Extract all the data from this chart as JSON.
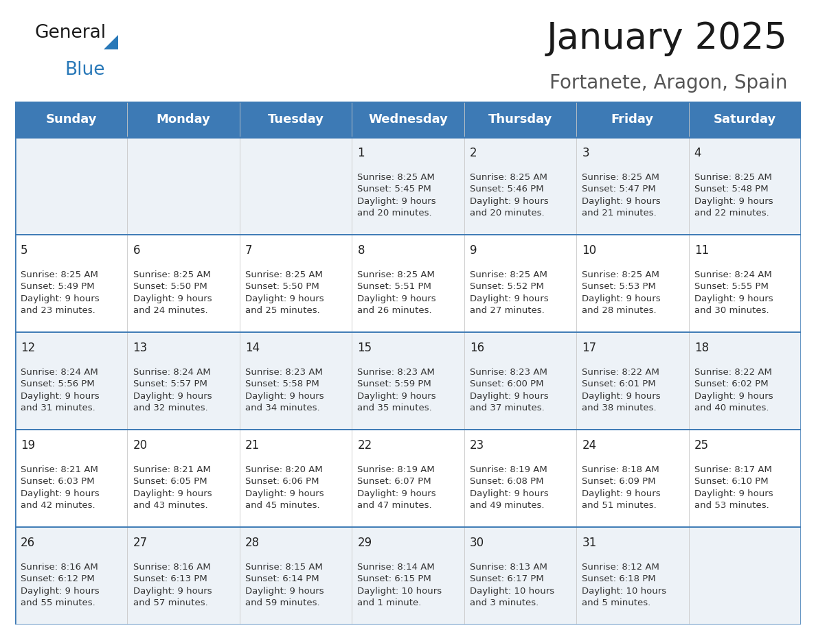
{
  "title": "January 2025",
  "subtitle": "Fortanete, Aragon, Spain",
  "header_color": "#3d7ab5",
  "header_text_color": "#ffffff",
  "cell_bg_row0": "#edf2f7",
  "cell_bg_row1": "#ffffff",
  "border_color": "#3d7ab5",
  "separator_color": "#3d7ab5",
  "day_headers": [
    "Sunday",
    "Monday",
    "Tuesday",
    "Wednesday",
    "Thursday",
    "Friday",
    "Saturday"
  ],
  "weeks": [
    [
      {
        "day": "",
        "info": ""
      },
      {
        "day": "",
        "info": ""
      },
      {
        "day": "",
        "info": ""
      },
      {
        "day": "1",
        "info": "Sunrise: 8:25 AM\nSunset: 5:45 PM\nDaylight: 9 hours\nand 20 minutes."
      },
      {
        "day": "2",
        "info": "Sunrise: 8:25 AM\nSunset: 5:46 PM\nDaylight: 9 hours\nand 20 minutes."
      },
      {
        "day": "3",
        "info": "Sunrise: 8:25 AM\nSunset: 5:47 PM\nDaylight: 9 hours\nand 21 minutes."
      },
      {
        "day": "4",
        "info": "Sunrise: 8:25 AM\nSunset: 5:48 PM\nDaylight: 9 hours\nand 22 minutes."
      }
    ],
    [
      {
        "day": "5",
        "info": "Sunrise: 8:25 AM\nSunset: 5:49 PM\nDaylight: 9 hours\nand 23 minutes."
      },
      {
        "day": "6",
        "info": "Sunrise: 8:25 AM\nSunset: 5:50 PM\nDaylight: 9 hours\nand 24 minutes."
      },
      {
        "day": "7",
        "info": "Sunrise: 8:25 AM\nSunset: 5:50 PM\nDaylight: 9 hours\nand 25 minutes."
      },
      {
        "day": "8",
        "info": "Sunrise: 8:25 AM\nSunset: 5:51 PM\nDaylight: 9 hours\nand 26 minutes."
      },
      {
        "day": "9",
        "info": "Sunrise: 8:25 AM\nSunset: 5:52 PM\nDaylight: 9 hours\nand 27 minutes."
      },
      {
        "day": "10",
        "info": "Sunrise: 8:25 AM\nSunset: 5:53 PM\nDaylight: 9 hours\nand 28 minutes."
      },
      {
        "day": "11",
        "info": "Sunrise: 8:24 AM\nSunset: 5:55 PM\nDaylight: 9 hours\nand 30 minutes."
      }
    ],
    [
      {
        "day": "12",
        "info": "Sunrise: 8:24 AM\nSunset: 5:56 PM\nDaylight: 9 hours\nand 31 minutes."
      },
      {
        "day": "13",
        "info": "Sunrise: 8:24 AM\nSunset: 5:57 PM\nDaylight: 9 hours\nand 32 minutes."
      },
      {
        "day": "14",
        "info": "Sunrise: 8:23 AM\nSunset: 5:58 PM\nDaylight: 9 hours\nand 34 minutes."
      },
      {
        "day": "15",
        "info": "Sunrise: 8:23 AM\nSunset: 5:59 PM\nDaylight: 9 hours\nand 35 minutes."
      },
      {
        "day": "16",
        "info": "Sunrise: 8:23 AM\nSunset: 6:00 PM\nDaylight: 9 hours\nand 37 minutes."
      },
      {
        "day": "17",
        "info": "Sunrise: 8:22 AM\nSunset: 6:01 PM\nDaylight: 9 hours\nand 38 minutes."
      },
      {
        "day": "18",
        "info": "Sunrise: 8:22 AM\nSunset: 6:02 PM\nDaylight: 9 hours\nand 40 minutes."
      }
    ],
    [
      {
        "day": "19",
        "info": "Sunrise: 8:21 AM\nSunset: 6:03 PM\nDaylight: 9 hours\nand 42 minutes."
      },
      {
        "day": "20",
        "info": "Sunrise: 8:21 AM\nSunset: 6:05 PM\nDaylight: 9 hours\nand 43 minutes."
      },
      {
        "day": "21",
        "info": "Sunrise: 8:20 AM\nSunset: 6:06 PM\nDaylight: 9 hours\nand 45 minutes."
      },
      {
        "day": "22",
        "info": "Sunrise: 8:19 AM\nSunset: 6:07 PM\nDaylight: 9 hours\nand 47 minutes."
      },
      {
        "day": "23",
        "info": "Sunrise: 8:19 AM\nSunset: 6:08 PM\nDaylight: 9 hours\nand 49 minutes."
      },
      {
        "day": "24",
        "info": "Sunrise: 8:18 AM\nSunset: 6:09 PM\nDaylight: 9 hours\nand 51 minutes."
      },
      {
        "day": "25",
        "info": "Sunrise: 8:17 AM\nSunset: 6:10 PM\nDaylight: 9 hours\nand 53 minutes."
      }
    ],
    [
      {
        "day": "26",
        "info": "Sunrise: 8:16 AM\nSunset: 6:12 PM\nDaylight: 9 hours\nand 55 minutes."
      },
      {
        "day": "27",
        "info": "Sunrise: 8:16 AM\nSunset: 6:13 PM\nDaylight: 9 hours\nand 57 minutes."
      },
      {
        "day": "28",
        "info": "Sunrise: 8:15 AM\nSunset: 6:14 PM\nDaylight: 9 hours\nand 59 minutes."
      },
      {
        "day": "29",
        "info": "Sunrise: 8:14 AM\nSunset: 6:15 PM\nDaylight: 10 hours\nand 1 minute."
      },
      {
        "day": "30",
        "info": "Sunrise: 8:13 AM\nSunset: 6:17 PM\nDaylight: 10 hours\nand 3 minutes."
      },
      {
        "day": "31",
        "info": "Sunrise: 8:12 AM\nSunset: 6:18 PM\nDaylight: 10 hours\nand 5 minutes."
      },
      {
        "day": "",
        "info": ""
      }
    ]
  ],
  "title_fontsize": 38,
  "subtitle_fontsize": 20,
  "header_fontsize": 13,
  "day_num_fontsize": 12,
  "info_fontsize": 9.5,
  "logo_general_fontsize": 19,
  "logo_blue_fontsize": 19
}
